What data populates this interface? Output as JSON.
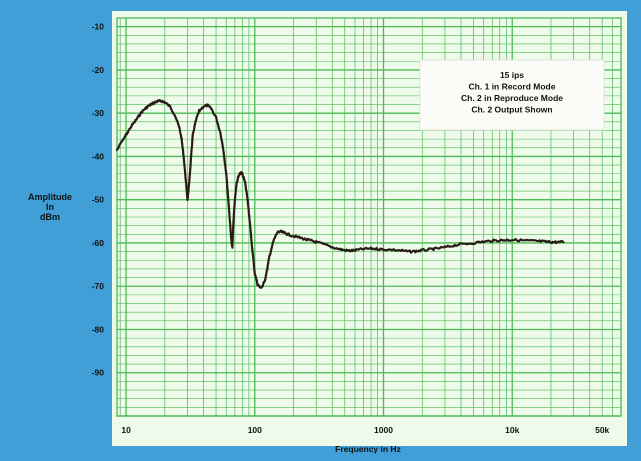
{
  "chart_data": {
    "type": "line",
    "title": "",
    "xlabel": "Frequency in Hz",
    "ylabel": [
      "Amplitude",
      "In",
      "dBm"
    ],
    "x_scale": "log",
    "xlim": [
      8.5,
      70000
    ],
    "ylim": [
      -100,
      -8
    ],
    "x_tick_labels": [
      {
        "value": 10,
        "label": "10"
      },
      {
        "value": 100,
        "label": "100"
      },
      {
        "value": 1000,
        "label": "1000"
      },
      {
        "value": 10000,
        "label": "10k"
      },
      {
        "value": 50000,
        "label": "50k"
      }
    ],
    "y_tick_labels": [
      -10,
      -20,
      -30,
      -40,
      -50,
      -60,
      -70,
      -80,
      -90
    ],
    "grid": true,
    "annotation": [
      "15 ips",
      "Ch. 1 in Record Mode",
      "Ch. 2 in Reproduce Mode",
      "Ch. 2 Output Shown"
    ],
    "annotation_placement": "top-right",
    "series": [
      {
        "color": "#2a1a18",
        "x": [
          8.5,
          10,
          11,
          12,
          13,
          14,
          15,
          16,
          17,
          18,
          19,
          20,
          22,
          24,
          26,
          27,
          28,
          29,
          30,
          31,
          32,
          33,
          35,
          37,
          40,
          43,
          46,
          50,
          54,
          57,
          60,
          63,
          66,
          67,
          68,
          70,
          72,
          74,
          76,
          78,
          80,
          84,
          88,
          92,
          96,
          100,
          105,
          110,
          115,
          120,
          125,
          130,
          140,
          150,
          160,
          170,
          180,
          200,
          225,
          250,
          275,
          300,
          350,
          400,
          450,
          500,
          550,
          600,
          700,
          800,
          900,
          1000,
          1200,
          1400,
          1600,
          1800,
          2000,
          2300,
          2600,
          3000,
          3500,
          4000,
          5000,
          6000,
          7000,
          8000,
          9000,
          10000,
          12000,
          14000,
          16000,
          18000,
          20000,
          22000,
          25000
        ],
        "y": [
          -38.5,
          -35,
          -33,
          -31.5,
          -30,
          -29,
          -28.3,
          -27.8,
          -27.4,
          -27.2,
          -27.2,
          -27.5,
          -28.5,
          -30.5,
          -33.5,
          -36,
          -40,
          -45,
          -50,
          -46,
          -40,
          -35,
          -31.5,
          -29.5,
          -28.4,
          -28.2,
          -29,
          -31,
          -34.5,
          -38.5,
          -44,
          -52,
          -60,
          -61,
          -56,
          -50,
          -46.5,
          -45,
          -44.2,
          -43.8,
          -44,
          -46,
          -50,
          -56,
          -62,
          -67,
          -69.5,
          -70.3,
          -70,
          -68.5,
          -66,
          -63,
          -59.5,
          -57.5,
          -57.4,
          -57.7,
          -58,
          -58.4,
          -58.8,
          -59.2,
          -59.5,
          -59.8,
          -60.4,
          -61,
          -61.4,
          -61.7,
          -61.8,
          -61.7,
          -61.4,
          -61.3,
          -61.4,
          -61.5,
          -61.6,
          -61.8,
          -62,
          -61.9,
          -61.7,
          -61.5,
          -61.3,
          -61,
          -60.6,
          -60.3,
          -60,
          -59.7,
          -59.5,
          -59.4,
          -59.3,
          -59.3,
          -59.4,
          -59.5,
          -59.6,
          -59.7,
          -59.8,
          -59.8,
          -59.8
        ]
      }
    ]
  }
}
